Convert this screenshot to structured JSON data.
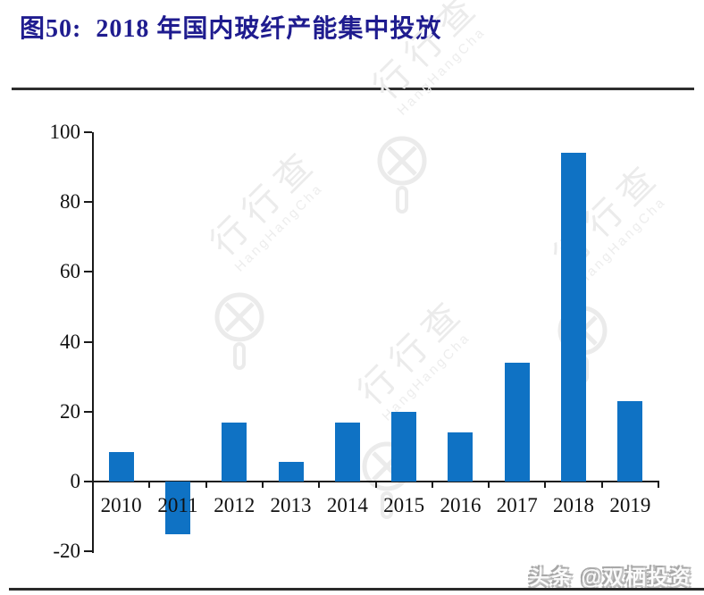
{
  "header": {
    "title": "图50:  2018 年国内玻纤产能集中投放",
    "title_color": "#1f1c8f"
  },
  "chart_data": {
    "type": "bar",
    "title": "2018 年国内玻纤产能集中投放",
    "categories": [
      "2010",
      "2011",
      "2012",
      "2013",
      "2014",
      "2015",
      "2016",
      "2017",
      "2018",
      "2019"
    ],
    "values": [
      8.5,
      -15,
      17,
      5.5,
      17,
      20,
      14,
      34,
      94,
      23
    ],
    "xlabel": "",
    "ylabel": "",
    "y_ticks": [
      100,
      80,
      60,
      40,
      20,
      0,
      -20
    ],
    "ylim": [
      -20,
      100
    ],
    "grid": "off",
    "legend": "none",
    "bar_color": "#0f72c4"
  },
  "watermark": {
    "icon": "magnifier-logo-icon",
    "text_cn": "行行查",
    "text_en": "HangHangCha",
    "color": "#ebebeb"
  },
  "footer": {
    "attribution": "头条 @双栖投资"
  }
}
